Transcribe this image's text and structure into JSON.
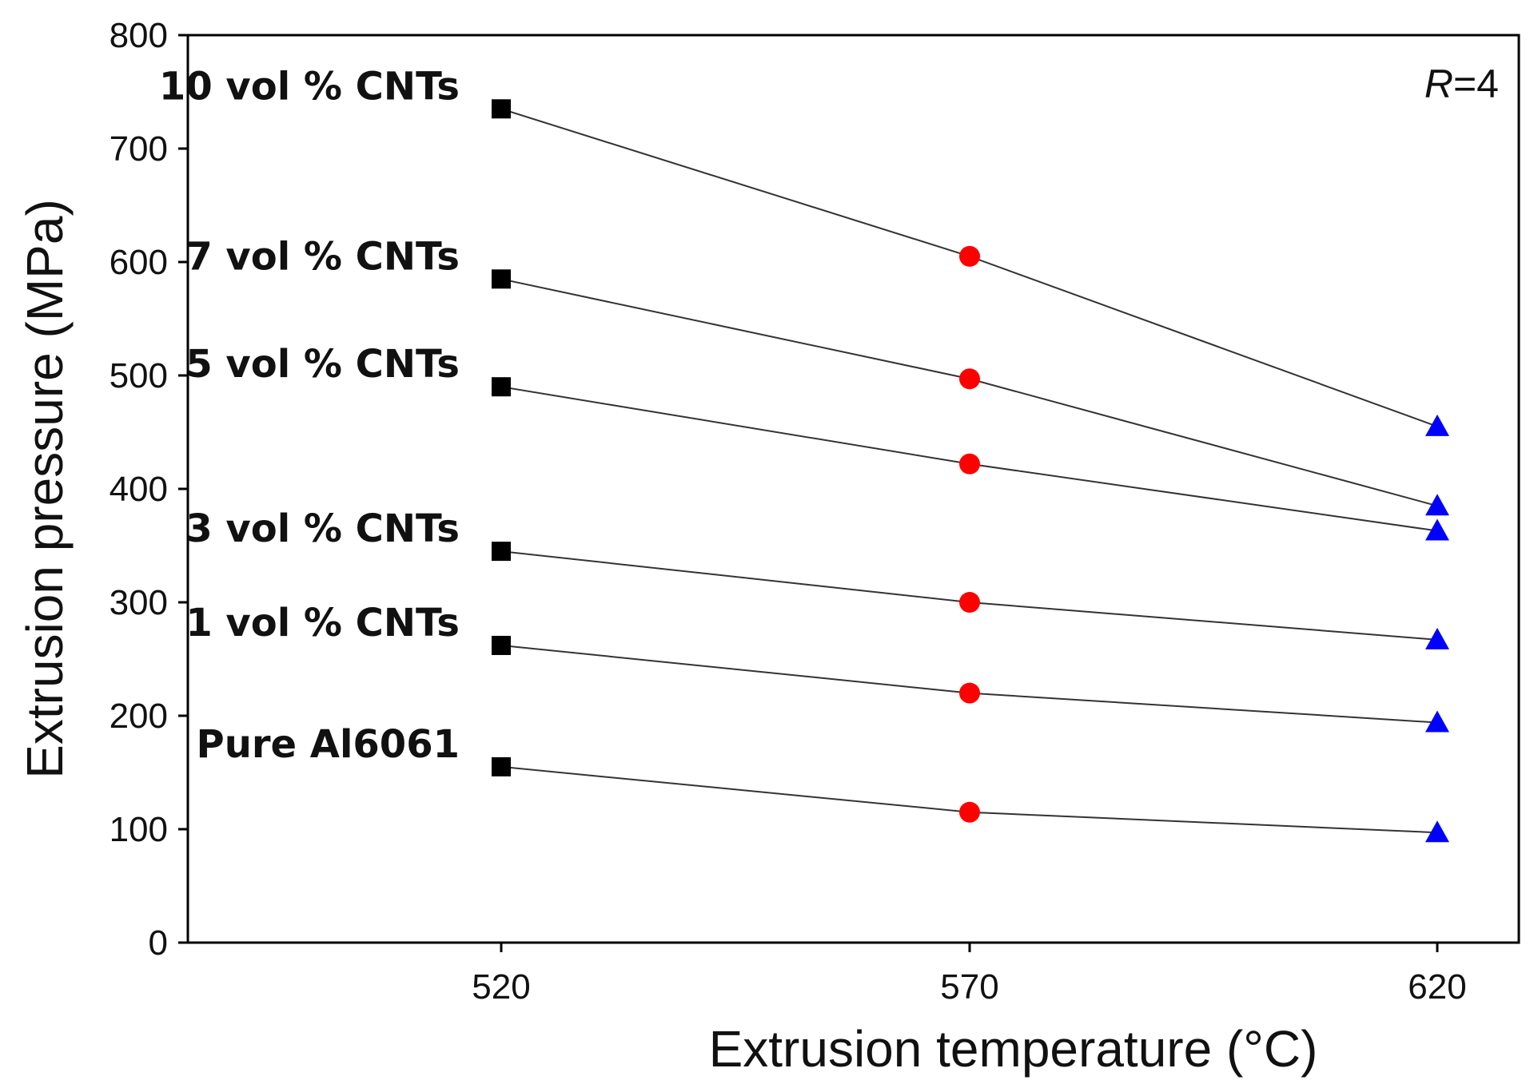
{
  "chart_data": {
    "type": "line",
    "xlabel": "Extrusion temperature (°C)",
    "ylabel": "Extrusion pressure (MPa)",
    "annotation": {
      "italic": "R",
      "rest": "=4"
    },
    "x": [
      520,
      570,
      620
    ],
    "xticks": [
      "520",
      "570",
      "620"
    ],
    "ylim": [
      0,
      800
    ],
    "yticks": [
      "0",
      "100",
      "200",
      "300",
      "400",
      "500",
      "600",
      "700",
      "800"
    ],
    "grid": false,
    "marker_styles": [
      {
        "temperature": 520,
        "shape": "square",
        "color": "#000000"
      },
      {
        "temperature": 570,
        "shape": "circle",
        "color": "#ff0000"
      },
      {
        "temperature": 620,
        "shape": "triangle",
        "color": "#0000ff"
      }
    ],
    "line_color": "#333333",
    "series": [
      {
        "name": "10 vol % CNTs",
        "values": [
          735,
          605,
          455
        ]
      },
      {
        "name": "7 vol % CNTs",
        "values": [
          585,
          497,
          385
        ]
      },
      {
        "name": "5 vol % CNTs",
        "values": [
          490,
          422,
          363
        ]
      },
      {
        "name": "3 vol % CNTs",
        "values": [
          345,
          300,
          267
        ]
      },
      {
        "name": "1 vol % CNTs",
        "values": [
          262,
          220,
          194
        ]
      },
      {
        "name": "Pure Al6061",
        "values": [
          155,
          115,
          97
        ]
      }
    ]
  }
}
